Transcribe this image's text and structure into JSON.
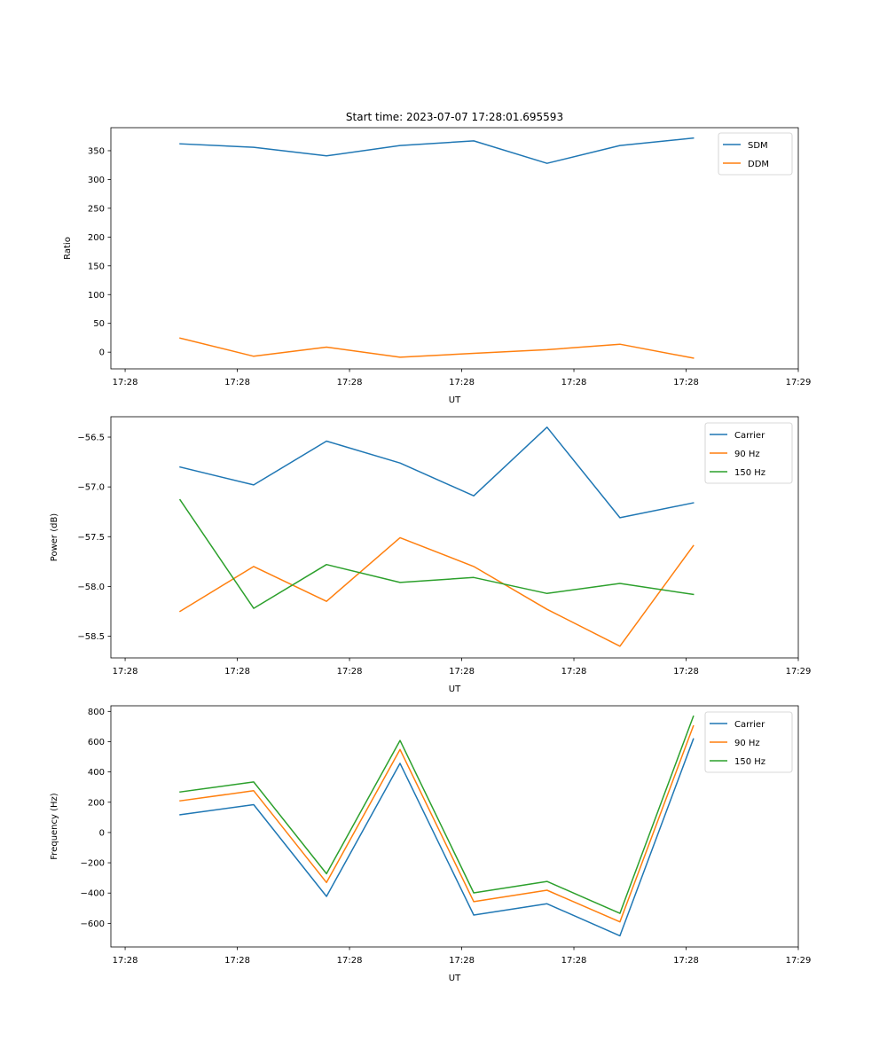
{
  "figure_title": "Start time: 2023-07-07 17:28:01.695593",
  "chart_data": [
    {
      "type": "line",
      "title": "Start time: 2023-07-07 17:28:01.695593",
      "xlabel": "UT",
      "ylabel": "Ratio",
      "x_seconds": [
        4.9,
        11.46,
        17.95,
        24.5,
        31.07,
        37.6,
        44.1,
        50.65
      ],
      "x_ticks": [
        {
          "s": 0,
          "label": "17:28"
        },
        {
          "s": 10,
          "label": "17:28"
        },
        {
          "s": 20,
          "label": "17:28"
        },
        {
          "s": 30,
          "label": "17:28"
        },
        {
          "s": 40,
          "label": "17:28"
        },
        {
          "s": 50,
          "label": "17:28"
        },
        {
          "s": 60,
          "label": "17:29"
        }
      ],
      "xlim": [
        -1.27,
        60.0
      ],
      "ylim": [
        -29,
        390
      ],
      "y_ticks": [
        0,
        50,
        100,
        150,
        200,
        250,
        300,
        350
      ],
      "y_tick_labels": [
        "0",
        "50",
        "100",
        "150",
        "200",
        "250",
        "300",
        "350"
      ],
      "legend": "top-right",
      "grid": false,
      "series": [
        {
          "name": "SDM",
          "color": "#1f77b4",
          "values": [
            362,
            356,
            341,
            359,
            367,
            328,
            359,
            372
          ]
        },
        {
          "name": "DDM",
          "color": "#ff7f0e",
          "values": [
            24.5,
            -7.2,
            8.8,
            -8.8,
            -2.0,
            4.2,
            13.9,
            -10.3
          ]
        }
      ]
    },
    {
      "type": "line",
      "title": "",
      "xlabel": "UT",
      "ylabel": "Power (dB)",
      "x_seconds": [
        4.9,
        11.46,
        17.95,
        24.5,
        31.07,
        37.6,
        44.1,
        50.65
      ],
      "x_ticks": [
        {
          "s": 0,
          "label": "17:28"
        },
        {
          "s": 10,
          "label": "17:28"
        },
        {
          "s": 20,
          "label": "17:28"
        },
        {
          "s": 30,
          "label": "17:28"
        },
        {
          "s": 40,
          "label": "17:28"
        },
        {
          "s": 50,
          "label": "17:28"
        },
        {
          "s": 60,
          "label": "17:29"
        }
      ],
      "xlim": [
        -1.27,
        60.0
      ],
      "ylim": [
        -58.718,
        -56.295
      ],
      "y_ticks": [
        -58.5,
        -58.0,
        -57.5,
        -57.0,
        -56.5
      ],
      "y_tick_labels": [
        "−58.5",
        "−58.0",
        "−57.5",
        "−57.0",
        "−56.5"
      ],
      "legend": "top-right",
      "grid": false,
      "series": [
        {
          "name": "Carrier",
          "color": "#1f77b4",
          "values": [
            -56.8,
            -56.98,
            -56.54,
            -56.76,
            -57.09,
            -56.4,
            -57.31,
            -57.16
          ]
        },
        {
          "name": "90 Hz",
          "color": "#ff7f0e",
          "values": [
            -58.25,
            -57.8,
            -58.15,
            -57.51,
            -57.8,
            -58.23,
            -58.6,
            -57.59
          ]
        },
        {
          "name": "150 Hz",
          "color": "#2ca02c",
          "values": [
            -57.13,
            -58.22,
            -57.78,
            -57.96,
            -57.91,
            -58.07,
            -57.97,
            -58.08
          ]
        }
      ]
    },
    {
      "type": "line",
      "title": "",
      "xlabel": "UT",
      "ylabel": "Frequency (Hz)",
      "x_seconds": [
        4.9,
        11.46,
        17.95,
        24.5,
        31.07,
        37.6,
        44.1,
        50.65
      ],
      "x_ticks": [
        {
          "s": 0,
          "label": "17:28"
        },
        {
          "s": 10,
          "label": "17:28"
        },
        {
          "s": 20,
          "label": "17:28"
        },
        {
          "s": 30,
          "label": "17:28"
        },
        {
          "s": 40,
          "label": "17:28"
        },
        {
          "s": 50,
          "label": "17:28"
        },
        {
          "s": 60,
          "label": "17:29"
        }
      ],
      "xlim": [
        -1.27,
        60.0
      ],
      "ylim": [
        -756,
        837
      ],
      "y_ticks": [
        -600,
        -400,
        -200,
        0,
        200,
        400,
        600,
        800
      ],
      "y_tick_labels": [
        "−600",
        "−400",
        "−200",
        "0",
        "200",
        "400",
        "600",
        "800"
      ],
      "legend": "top-right",
      "grid": false,
      "series": [
        {
          "name": "Carrier",
          "color": "#1f77b4",
          "values": [
            117,
            184,
            -422,
            457,
            -545,
            -471,
            -682,
            618
          ]
        },
        {
          "name": "90 Hz",
          "color": "#ff7f0e",
          "values": [
            209,
            276,
            -330,
            548,
            -457,
            -381,
            -590,
            704
          ]
        },
        {
          "name": "150 Hz",
          "color": "#2ca02c",
          "values": [
            268,
            334,
            -272,
            608,
            -399,
            -323,
            -534,
            768
          ]
        }
      ]
    }
  ]
}
